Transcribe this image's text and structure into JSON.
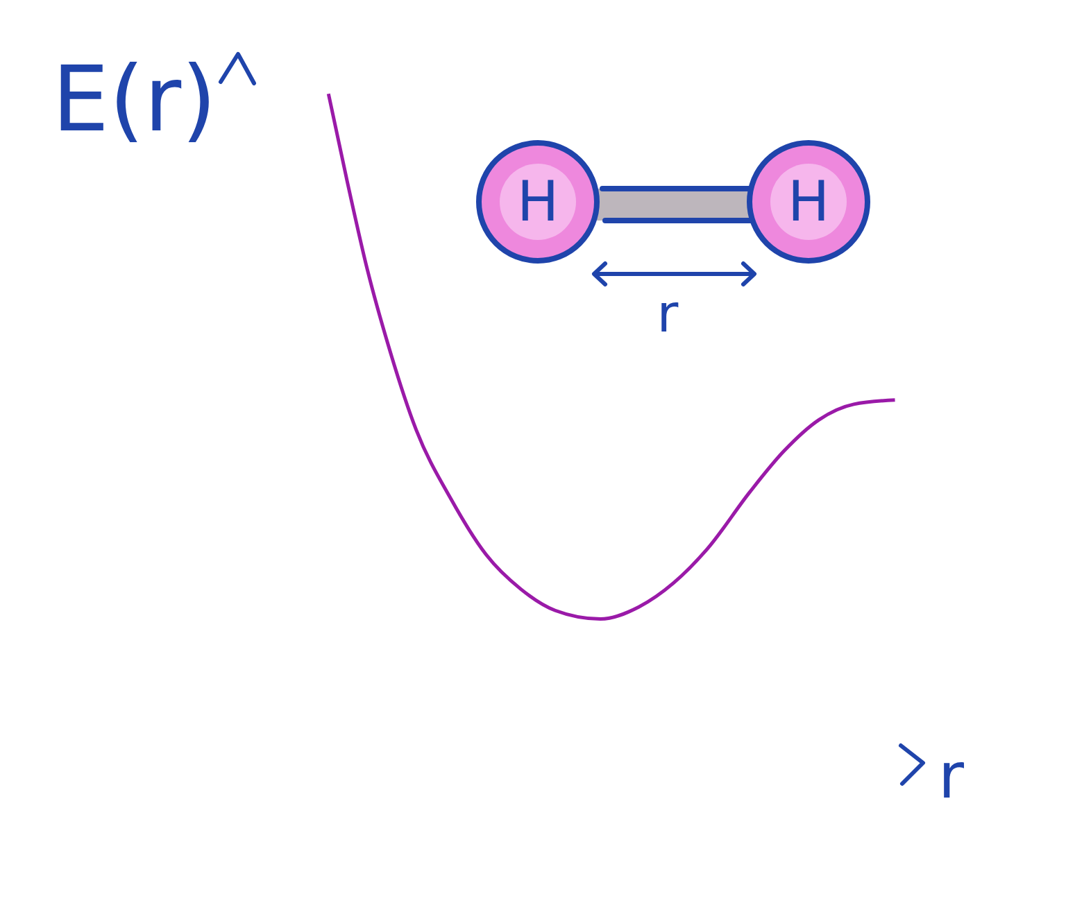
{
  "chart_data": {
    "type": "line",
    "x_label": "r",
    "y_label": "E(r)",
    "x": [
      1.32,
      1.59,
      1.89,
      2.2,
      2.6,
      3.11,
      3.62,
      4.13,
      4.63,
      5.29,
      5.85,
      6.36,
      6.86,
      7.47,
      7.97,
      8.48,
      8.99,
      9.59
    ],
    "values": [
      9.44,
      8.22,
      6.95,
      5.87,
      4.7,
      3.72,
      2.94,
      2.45,
      2.15,
      2.03,
      2.2,
      2.54,
      3.03,
      3.82,
      4.4,
      4.84,
      5.06,
      5.12
    ],
    "color": "#9a1aa8",
    "xlim": [
      0,
      10
    ],
    "ylim": [
      0,
      10
    ],
    "tick_labels": false,
    "annotations": {
      "molecule": {
        "atoms": [
          "H",
          "H"
        ],
        "distance_label": "r"
      }
    }
  }
}
